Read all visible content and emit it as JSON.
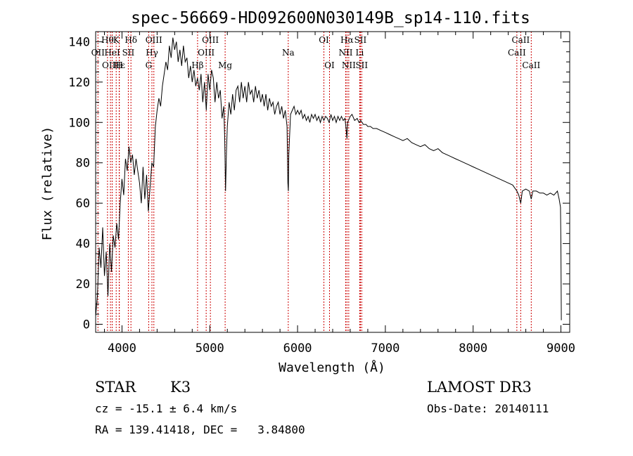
{
  "chart_data": {
    "type": "line",
    "title": "spec-56669-HD092600N030149B_sp14-110.fits",
    "xlabel": "Wavelength (Å)",
    "ylabel": "Flux (relative)",
    "xlim": [
      3700,
      9100
    ],
    "ylim": [
      -4,
      145
    ],
    "xticks": [
      4000,
      5000,
      6000,
      7000,
      8000,
      9000
    ],
    "yticks": [
      0,
      20,
      40,
      60,
      80,
      100,
      120,
      140
    ],
    "grid": false,
    "line_color": "#000000",
    "marker_color": "#cc0000",
    "series": [
      {
        "points": [
          [
            3700,
            4
          ],
          [
            3720,
            14
          ],
          [
            3740,
            38
          ],
          [
            3760,
            28
          ],
          [
            3780,
            48
          ],
          [
            3800,
            24
          ],
          [
            3820,
            36
          ],
          [
            3840,
            14
          ],
          [
            3860,
            40
          ],
          [
            3880,
            26
          ],
          [
            3900,
            44
          ],
          [
            3920,
            38
          ],
          [
            3940,
            50
          ],
          [
            3960,
            42
          ],
          [
            3980,
            60
          ],
          [
            4000,
            72
          ],
          [
            4020,
            64
          ],
          [
            4040,
            82
          ],
          [
            4060,
            76
          ],
          [
            4080,
            88
          ],
          [
            4100,
            80
          ],
          [
            4120,
            84
          ],
          [
            4140,
            74
          ],
          [
            4160,
            82
          ],
          [
            4180,
            76
          ],
          [
            4200,
            70
          ],
          [
            4220,
            60
          ],
          [
            4240,
            78
          ],
          [
            4260,
            62
          ],
          [
            4280,
            74
          ],
          [
            4300,
            56
          ],
          [
            4320,
            68
          ],
          [
            4340,
            80
          ],
          [
            4360,
            78
          ],
          [
            4380,
            98
          ],
          [
            4400,
            106
          ],
          [
            4420,
            112
          ],
          [
            4440,
            108
          ],
          [
            4460,
            118
          ],
          [
            4480,
            124
          ],
          [
            4500,
            130
          ],
          [
            4520,
            126
          ],
          [
            4540,
            138
          ],
          [
            4560,
            132
          ],
          [
            4580,
            142
          ],
          [
            4600,
            136
          ],
          [
            4620,
            140
          ],
          [
            4640,
            130
          ],
          [
            4660,
            136
          ],
          [
            4680,
            128
          ],
          [
            4700,
            138
          ],
          [
            4720,
            130
          ],
          [
            4740,
            132
          ],
          [
            4760,
            122
          ],
          [
            4780,
            128
          ],
          [
            4800,
            120
          ],
          [
            4820,
            126
          ],
          [
            4840,
            118
          ],
          [
            4860,
            122
          ],
          [
            4880,
            116
          ],
          [
            4900,
            124
          ],
          [
            4920,
            110
          ],
          [
            4940,
            120
          ],
          [
            4960,
            106
          ],
          [
            4980,
            124
          ],
          [
            5000,
            116
          ],
          [
            5020,
            126
          ],
          [
            5040,
            122
          ],
          [
            5060,
            110
          ],
          [
            5080,
            120
          ],
          [
            5100,
            112
          ],
          [
            5120,
            116
          ],
          [
            5140,
            102
          ],
          [
            5160,
            108
          ],
          [
            5170,
            92
          ],
          [
            5180,
            66
          ],
          [
            5190,
            86
          ],
          [
            5200,
            98
          ],
          [
            5220,
            110
          ],
          [
            5240,
            104
          ],
          [
            5260,
            114
          ],
          [
            5280,
            106
          ],
          [
            5300,
            116
          ],
          [
            5320,
            118
          ],
          [
            5340,
            110
          ],
          [
            5360,
            120
          ],
          [
            5380,
            112
          ],
          [
            5400,
            118
          ],
          [
            5420,
            110
          ],
          [
            5440,
            120
          ],
          [
            5460,
            114
          ],
          [
            5480,
            116
          ],
          [
            5500,
            110
          ],
          [
            5520,
            118
          ],
          [
            5540,
            112
          ],
          [
            5560,
            116
          ],
          [
            5580,
            110
          ],
          [
            5600,
            114
          ],
          [
            5620,
            108
          ],
          [
            5640,
            114
          ],
          [
            5660,
            106
          ],
          [
            5680,
            112
          ],
          [
            5700,
            108
          ],
          [
            5720,
            110
          ],
          [
            5740,
            104
          ],
          [
            5760,
            108
          ],
          [
            5780,
            110
          ],
          [
            5800,
            104
          ],
          [
            5820,
            108
          ],
          [
            5840,
            102
          ],
          [
            5860,
            106
          ],
          [
            5880,
            98
          ],
          [
            5890,
            70
          ],
          [
            5895,
            66
          ],
          [
            5900,
            84
          ],
          [
            5920,
            104
          ],
          [
            5940,
            106
          ],
          [
            5960,
            108
          ],
          [
            5980,
            104
          ],
          [
            6000,
            106
          ],
          [
            6020,
            104
          ],
          [
            6040,
            106
          ],
          [
            6060,
            102
          ],
          [
            6080,
            104
          ],
          [
            6100,
            101
          ],
          [
            6120,
            103
          ],
          [
            6140,
            100
          ],
          [
            6160,
            104
          ],
          [
            6180,
            102
          ],
          [
            6200,
            104
          ],
          [
            6220,
            101
          ],
          [
            6240,
            103
          ],
          [
            6260,
            100
          ],
          [
            6280,
            103
          ],
          [
            6300,
            101
          ],
          [
            6320,
            103
          ],
          [
            6340,
            102
          ],
          [
            6360,
            100
          ],
          [
            6380,
            104
          ],
          [
            6400,
            101
          ],
          [
            6420,
            103
          ],
          [
            6440,
            100
          ],
          [
            6460,
            103
          ],
          [
            6480,
            101
          ],
          [
            6500,
            103
          ],
          [
            6520,
            101
          ],
          [
            6540,
            102
          ],
          [
            6555,
            96
          ],
          [
            6563,
            92
          ],
          [
            6570,
            100
          ],
          [
            6600,
            103
          ],
          [
            6620,
            104
          ],
          [
            6650,
            101
          ],
          [
            6680,
            102
          ],
          [
            6700,
            100
          ],
          [
            6720,
            101
          ],
          [
            6750,
            99
          ],
          [
            6780,
            99
          ],
          [
            6800,
            98
          ],
          [
            6830,
            98
          ],
          [
            6860,
            97
          ],
          [
            6900,
            97
          ],
          [
            6950,
            96
          ],
          [
            7000,
            95
          ],
          [
            7050,
            94
          ],
          [
            7100,
            93
          ],
          [
            7150,
            92
          ],
          [
            7200,
            91
          ],
          [
            7250,
            92
          ],
          [
            7300,
            90
          ],
          [
            7350,
            89
          ],
          [
            7400,
            88
          ],
          [
            7450,
            89
          ],
          [
            7500,
            87
          ],
          [
            7550,
            86
          ],
          [
            7600,
            87
          ],
          [
            7650,
            85
          ],
          [
            7700,
            84
          ],
          [
            7750,
            83
          ],
          [
            7800,
            82
          ],
          [
            7850,
            81
          ],
          [
            7900,
            80
          ],
          [
            7950,
            79
          ],
          [
            8000,
            78
          ],
          [
            8050,
            77
          ],
          [
            8100,
            76
          ],
          [
            8150,
            75
          ],
          [
            8200,
            74
          ],
          [
            8250,
            73
          ],
          [
            8300,
            72
          ],
          [
            8350,
            71
          ],
          [
            8400,
            70
          ],
          [
            8450,
            69
          ],
          [
            8498,
            66
          ],
          [
            8520,
            64
          ],
          [
            8542,
            60
          ],
          [
            8560,
            66
          ],
          [
            8600,
            67
          ],
          [
            8640,
            66
          ],
          [
            8662,
            62
          ],
          [
            8680,
            66
          ],
          [
            8720,
            66
          ],
          [
            8760,
            65
          ],
          [
            8800,
            65
          ],
          [
            8840,
            64
          ],
          [
            8880,
            65
          ],
          [
            8920,
            64
          ],
          [
            8960,
            66
          ],
          [
            8980,
            62
          ],
          [
            8995,
            58
          ],
          [
            9000,
            40
          ],
          [
            9005,
            2
          ]
        ]
      }
    ],
    "line_markers": [
      {
        "wl": 3726,
        "label": "OII",
        "row": 1
      },
      {
        "wl": 3835,
        "label": "Hθ",
        "row": 0
      },
      {
        "wl": 3869,
        "label": "OIII",
        "row": 2
      },
      {
        "wl": 3889,
        "label": "HeI",
        "row": 1
      },
      {
        "wl": 3934,
        "label": "K",
        "row": 0
      },
      {
        "wl": 3970,
        "label": "Hε",
        "row": 2
      },
      {
        "wl": 3968,
        "label": "H",
        "row": 2
      },
      {
        "wl": 4072,
        "label": "SII",
        "row": 1
      },
      {
        "wl": 4102,
        "label": "Hδ",
        "row": 0
      },
      {
        "wl": 4304,
        "label": "G",
        "row": 2
      },
      {
        "wl": 4341,
        "label": "Hγ",
        "row": 1
      },
      {
        "wl": 4363,
        "label": "OIII",
        "row": 0
      },
      {
        "wl": 4861,
        "label": "Hβ",
        "row": 2
      },
      {
        "wl": 4959,
        "label": "OIII",
        "row": 1
      },
      {
        "wl": 5007,
        "label": "OIII",
        "row": 0
      },
      {
        "wl": 5175,
        "label": "Mg",
        "row": 2
      },
      {
        "wl": 5894,
        "label": "Na",
        "row": 1
      },
      {
        "wl": 6300,
        "label": "OI",
        "row": 0
      },
      {
        "wl": 6364,
        "label": "OI",
        "row": 2
      },
      {
        "wl": 6548,
        "label": "NII",
        "row": 1
      },
      {
        "wl": 6563,
        "label": "Hα",
        "row": 0
      },
      {
        "wl": 6583,
        "label": "NII",
        "row": 2
      },
      {
        "wl": 6708,
        "label": "Li",
        "row": 1
      },
      {
        "wl": 6716,
        "label": "SII",
        "row": 0
      },
      {
        "wl": 6731,
        "label": "SII",
        "row": 2
      },
      {
        "wl": 8498,
        "label": "CaII",
        "row": 1
      },
      {
        "wl": 8542,
        "label": "CaII",
        "row": 0
      },
      {
        "wl": 8662,
        "label": "CaII",
        "row": 2
      }
    ]
  },
  "info": {
    "object_class": "STAR",
    "subclass": "K3",
    "survey": "LAMOST DR3",
    "cz": "cz = -15.1 ± 6.4 km/s",
    "obs_date": "Obs-Date: 20140111",
    "coords": "RA = 139.41418, DEC =   3.84800"
  }
}
